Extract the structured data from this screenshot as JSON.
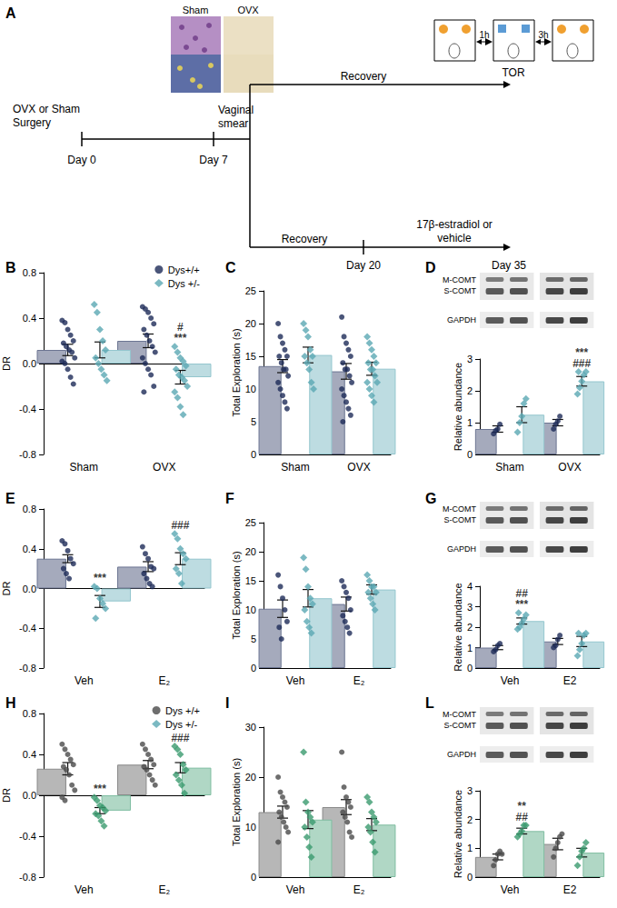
{
  "diagram": {
    "title": "A",
    "image_labels": [
      "Sham",
      "OVX"
    ],
    "surgery": "OVX or Sham\nSurgery",
    "day0": "Day 0",
    "smear": "Vaginal\nsmear",
    "day7": "Day 7",
    "recovery_top": "Recovery",
    "recovery_bottom": "Recovery",
    "treatment": "17β-estradiol or\nvehicle",
    "day20": "Day 20",
    "day35": "Day 35",
    "test": "TOR",
    "intervals": [
      "1h",
      "3h"
    ]
  },
  "chart_data": [
    {
      "type": "bar",
      "title": "B",
      "ylabel": "DR",
      "categories": [
        "Sham",
        "OVX"
      ],
      "ylim": [
        -0.8,
        0.8
      ],
      "yticks": [
        -0.8,
        -0.4,
        {
          "value": 0,
          "label": "0.0"
        },
        0.4,
        0.8
      ],
      "grid": false,
      "legend": "top-right",
      "series": [
        {
          "name": "Dys+/+",
          "color": "#1d2b57",
          "marker": "circle",
          "values": [
            0.12,
            0.2
          ],
          "errors": [
            0.05,
            0.06
          ],
          "points": [
            [
              0.38,
              0.36,
              0.3,
              0.25,
              0.2,
              0.18,
              0.15,
              0.12,
              0.1,
              0.05,
              0.02,
              0.0,
              -0.05,
              -0.12,
              -0.18
            ],
            [
              0.5,
              0.48,
              0.45,
              0.4,
              0.35,
              0.3,
              0.25,
              0.2,
              0.15,
              0.1,
              0.05,
              0.0,
              -0.05,
              -0.1,
              -0.2,
              -0.25
            ]
          ]
        },
        {
          "name": "Dys +/-",
          "color": "#5aa7b3",
          "marker": "diamond",
          "values": [
            0.12,
            -0.12
          ],
          "errors": [
            0.07,
            0.06
          ],
          "points": [
            [
              0.52,
              0.45,
              0.3,
              0.2,
              0.12,
              0.05,
              0.0,
              -0.05,
              -0.1,
              -0.15
            ],
            [
              0.15,
              0.1,
              0.05,
              0.02,
              -0.02,
              -0.05,
              -0.1,
              -0.12,
              -0.15,
              -0.2,
              -0.25,
              -0.3,
              -0.38,
              -0.45
            ]
          ]
        }
      ],
      "annotations": [
        {
          "text": "***",
          "category": "OVX",
          "series": 1
        },
        {
          "text": "#",
          "category": "OVX",
          "series": 1
        }
      ]
    },
    {
      "type": "bar",
      "title": "C",
      "ylabel": "Total Exploration (s)",
      "categories": [
        "Sham",
        "OVX"
      ],
      "ylim": [
        0,
        25
      ],
      "yticks": [
        0,
        5,
        10,
        15,
        20,
        25
      ],
      "grid": false,
      "series": [
        {
          "color": "#1d2b57",
          "marker": "circle",
          "values": [
            13.5,
            12.7
          ],
          "errors": [
            1.0,
            1.2
          ],
          "points": [
            [
              20,
              18,
              17,
              16,
              15,
              15,
              14,
              13,
              13,
              12,
              11,
              10,
              9,
              8,
              7
            ],
            [
              21,
              18,
              17,
              16,
              15,
              14,
              13,
              13,
              12,
              11,
              10,
              9,
              8,
              7,
              6,
              5
            ]
          ]
        },
        {
          "color": "#5aa7b3",
          "marker": "diamond",
          "values": [
            15.2,
            13.1
          ],
          "errors": [
            1.2,
            1.0
          ],
          "points": [
            [
              20,
              19,
              18,
              16,
              15,
              15,
              14,
              13,
              11,
              10
            ],
            [
              18,
              17,
              16,
              15,
              14,
              14,
              13,
              13,
              12,
              11,
              11,
              10,
              9,
              8
            ]
          ]
        }
      ],
      "annotations": []
    },
    {
      "type": "bar",
      "title": "D",
      "ylabel": "Relative abundance",
      "categories": [
        "Sham",
        "OVX"
      ],
      "ylim": [
        0,
        3
      ],
      "yticks": [
        0,
        1,
        2,
        3
      ],
      "grid": false,
      "blot_labels": [
        "M-COMT",
        "S-COMT",
        "GAPDH"
      ],
      "series": [
        {
          "color": "#1d2b57",
          "marker": "circle",
          "values": [
            0.8,
            1.0
          ],
          "errors": [
            0.1,
            0.1
          ],
          "points": [
            [
              0.65,
              0.75,
              0.8,
              0.95
            ],
            [
              0.8,
              0.95,
              1.05,
              1.2
            ]
          ]
        },
        {
          "color": "#5aa7b3",
          "marker": "diamond",
          "values": [
            1.25,
            2.3
          ],
          "errors": [
            0.25,
            0.15
          ],
          "points": [
            [
              0.7,
              1.0,
              1.2,
              1.6,
              1.75
            ],
            [
              1.9,
              2.1,
              2.3,
              2.5,
              2.6,
              2.6
            ]
          ]
        }
      ],
      "annotations": [
        {
          "text": "###",
          "category": "OVX",
          "series": 1
        },
        {
          "text": "***",
          "category": "OVX",
          "series": 1
        }
      ]
    },
    {
      "type": "bar",
      "title": "E",
      "ylabel": "DR",
      "categories": [
        "Veh",
        "E₂"
      ],
      "ylim": [
        -0.8,
        0.8
      ],
      "yticks": [
        -0.8,
        -0.4,
        {
          "value": 0,
          "label": "0.0"
        },
        0.4,
        0.8
      ],
      "grid": false,
      "series": [
        {
          "color": "#1d2b57",
          "marker": "circle",
          "values": [
            0.3,
            0.22
          ],
          "errors": [
            0.04,
            0.05
          ],
          "points": [
            [
              0.48,
              0.45,
              0.38,
              0.3,
              0.25,
              0.2,
              0.15,
              0.1
            ],
            [
              0.42,
              0.35,
              0.3,
              0.22,
              0.2,
              0.15,
              0.1,
              0.05,
              0.02
            ]
          ]
        },
        {
          "color": "#5aa7b3",
          "marker": "diamond",
          "values": [
            -0.13,
            0.3
          ],
          "errors": [
            0.06,
            0.06
          ],
          "points": [
            [
              0.02,
              0.0,
              -0.1,
              -0.15,
              -0.2,
              -0.3
            ],
            [
              0.55,
              0.5,
              0.4,
              0.35,
              0.3,
              0.2,
              0.15,
              0.05
            ]
          ]
        }
      ],
      "annotations": [
        {
          "text": "***",
          "category": "Veh",
          "series": 1
        },
        {
          "text": "###",
          "category": "E₂",
          "series": 1
        }
      ]
    },
    {
      "type": "bar",
      "title": "F",
      "ylabel": "Total Exploration (s)",
      "categories": [
        "Veh",
        "E₂"
      ],
      "ylim": [
        0,
        25
      ],
      "yticks": [
        0,
        5,
        10,
        15,
        20,
        25
      ],
      "grid": false,
      "series": [
        {
          "color": "#1d2b57",
          "marker": "circle",
          "values": [
            10.2,
            11.0
          ],
          "errors": [
            1.5,
            1.2
          ],
          "points": [
            [
              16,
              14,
              12,
              10,
              8,
              7,
              5
            ],
            [
              15,
              14,
              13,
              12,
              10,
              9,
              8,
              7,
              6
            ]
          ]
        },
        {
          "color": "#5aa7b3",
          "marker": "diamond",
          "values": [
            12.0,
            13.5
          ],
          "errors": [
            1.5,
            0.8
          ],
          "points": [
            [
              19,
              17,
              14,
              12,
              11,
              10,
              8,
              7,
              6
            ],
            [
              16,
              15,
              14,
              14,
              13,
              13,
              12,
              11,
              10
            ]
          ]
        }
      ],
      "annotations": []
    },
    {
      "type": "bar",
      "title": "G",
      "ylabel": "Relative abundance",
      "categories": [
        "Veh",
        "E2"
      ],
      "ylim": [
        0,
        4
      ],
      "yticks": [
        0,
        1,
        2,
        3,
        4
      ],
      "grid": false,
      "blot_labels": [
        "M-COMT",
        "S-COMT",
        "GAPDH"
      ],
      "series": [
        {
          "color": "#1d2b57",
          "marker": "circle",
          "values": [
            1.0,
            1.3
          ],
          "errors": [
            0.1,
            0.15
          ],
          "points": [
            [
              0.8,
              0.9,
              1.1,
              1.2
            ],
            [
              1.0,
              1.1,
              1.4,
              1.6
            ]
          ]
        },
        {
          "color": "#5aa7b3",
          "marker": "diamond",
          "values": [
            2.3,
            1.3
          ],
          "errors": [
            0.15,
            0.25
          ],
          "points": [
            [
              1.9,
              2.0,
              2.2,
              2.4,
              2.6,
              2.7
            ],
            [
              0.6,
              0.9,
              1.2,
              1.6,
              1.7,
              1.7
            ]
          ]
        }
      ],
      "annotations": [
        {
          "text": "***",
          "category": "Veh",
          "series": 1
        },
        {
          "text": "##",
          "category": "Veh",
          "series": 1
        }
      ]
    },
    {
      "type": "bar",
      "title": "H",
      "ylabel": "DR",
      "categories": [
        "Veh",
        "E₂"
      ],
      "ylim": [
        -0.8,
        0.8
      ],
      "yticks": [
        -0.8,
        -0.4,
        {
          "value": 0,
          "label": "0.0"
        },
        0.4,
        0.8
      ],
      "grid": false,
      "legend": "top-right",
      "series": [
        {
          "name": "Dys +/+",
          "color": "#4a4a4a",
          "marker": "circle",
          "values": [
            0.26,
            0.3
          ],
          "errors": [
            0.06,
            0.04
          ],
          "points": [
            [
              0.5,
              0.45,
              0.4,
              0.35,
              0.3,
              0.28,
              0.25,
              0.2,
              0.1,
              0.05,
              -0.02,
              -0.05
            ],
            [
              0.5,
              0.45,
              0.4,
              0.35,
              0.3,
              0.28,
              0.25,
              0.2,
              0.15,
              0.1
            ]
          ]
        },
        {
          "name": "Dys +/-",
          "color": "#3a9a6e",
          "marker": "diamond",
          "values": [
            -0.15,
            0.27
          ],
          "errors": [
            0.03,
            0.05
          ],
          "points": [
            [
              -0.02,
              -0.05,
              -0.1,
              -0.12,
              -0.15,
              -0.18,
              -0.2,
              -0.25,
              -0.3
            ],
            [
              0.48,
              0.45,
              0.4,
              0.3,
              0.25,
              0.2,
              0.15,
              0.1,
              0.02
            ]
          ]
        }
      ],
      "annotations": [
        {
          "text": "***",
          "category": "Veh",
          "series": 1
        },
        {
          "text": "###",
          "category": "E₂",
          "series": 1
        }
      ]
    },
    {
      "type": "bar",
      "title": "I",
      "ylabel": "Total Exploration (s)",
      "categories": [
        "Veh",
        "E₂"
      ],
      "ylim": [
        0,
        30
      ],
      "yticks": [
        0,
        10,
        20,
        30
      ],
      "grid": false,
      "series": [
        {
          "color": "#4a4a4a",
          "marker": "circle",
          "values": [
            13.0,
            14.0
          ],
          "errors": [
            1.2,
            1.5
          ],
          "points": [
            [
              20,
              17,
              16,
              15,
              14,
              13,
              12,
              11,
              10,
              9,
              7
            ],
            [
              25,
              18,
              16,
              15,
              14,
              13,
              12,
              11,
              9,
              8
            ]
          ]
        },
        {
          "color": "#3a9a6e",
          "marker": "diamond",
          "values": [
            11.5,
            10.5
          ],
          "errors": [
            1.8,
            1.2
          ],
          "points": [
            [
              25,
              15,
              13,
              12,
              11,
              10,
              8,
              6,
              4
            ],
            [
              16,
              15,
              13,
              12,
              11,
              10,
              9,
              7,
              5
            ]
          ]
        }
      ],
      "annotations": []
    },
    {
      "type": "bar",
      "title": "L",
      "ylabel": "Relative abundance",
      "categories": [
        "Veh",
        "E2"
      ],
      "ylim": [
        0,
        3
      ],
      "yticks": [
        0,
        1,
        2,
        3
      ],
      "grid": false,
      "blot_labels": [
        "M-COMT",
        "S-COMT",
        "GAPDH"
      ],
      "series": [
        {
          "color": "#4a4a4a",
          "marker": "circle",
          "values": [
            0.7,
            1.15
          ],
          "errors": [
            0.1,
            0.2
          ],
          "points": [
            [
              0.4,
              0.6,
              0.8,
              0.9,
              0.8
            ],
            [
              0.7,
              1.0,
              1.2,
              1.4,
              1.5
            ]
          ]
        },
        {
          "color": "#3a9a6e",
          "marker": "diamond",
          "values": [
            1.6,
            0.85
          ],
          "errors": [
            0.1,
            0.15
          ],
          "points": [
            [
              1.4,
              1.5,
              1.6,
              1.8,
              1.8
            ],
            [
              0.4,
              0.7,
              0.9,
              1.0,
              1.2
            ]
          ]
        }
      ],
      "annotations": [
        {
          "text": "##",
          "category": "Veh",
          "series": 1
        },
        {
          "text": "**",
          "category": "Veh",
          "series": 1
        }
      ]
    }
  ]
}
